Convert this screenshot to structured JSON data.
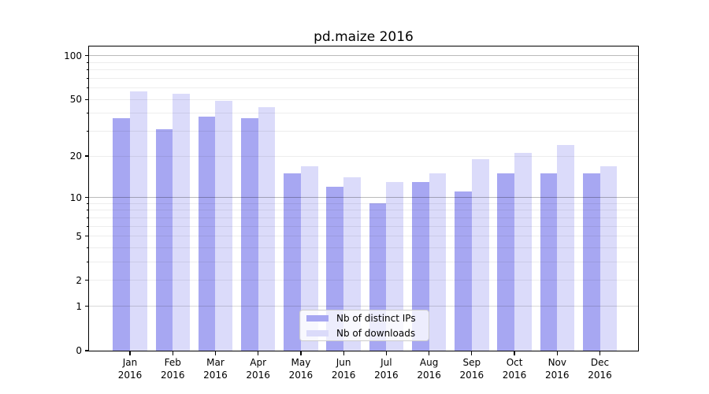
{
  "title": "pd.maize 2016",
  "colors": {
    "distinct_ips": "#a7a7f2",
    "downloads": "#dbdbfa",
    "grid_major": "rgba(0,0,0,0.27)",
    "grid_mid": "rgba(0,0,0,0.15)",
    "grid_minor": "rgba(0,0,0,0.07)"
  },
  "legend": {
    "items": [
      {
        "label": "Nb of distinct IPs",
        "color_key": "distinct_ips"
      },
      {
        "label": "Nb of downloads",
        "color_key": "downloads"
      }
    ]
  },
  "y_axis": {
    "ticks": [
      {
        "label": "100",
        "value": 100
      },
      {
        "label": "50",
        "value": 50
      },
      {
        "label": "20",
        "value": 20
      },
      {
        "label": "10",
        "value": 10
      },
      {
        "label": "5",
        "value": 5
      },
      {
        "label": "2",
        "value": 2
      },
      {
        "label": "1",
        "value": 1
      },
      {
        "label": "0",
        "value": 0
      }
    ],
    "gridlines": {
      "major": [
        100,
        10
      ],
      "mid": [
        1
      ],
      "minor": [
        90,
        80,
        70,
        60,
        50,
        40,
        30,
        20,
        9,
        8,
        7,
        6,
        5,
        4,
        3,
        2
      ]
    }
  },
  "x_axis": {
    "categories": [
      {
        "month": "Jan",
        "year": "2016"
      },
      {
        "month": "Feb",
        "year": "2016"
      },
      {
        "month": "Mar",
        "year": "2016"
      },
      {
        "month": "Apr",
        "year": "2016"
      },
      {
        "month": "May",
        "year": "2016"
      },
      {
        "month": "Jun",
        "year": "2016"
      },
      {
        "month": "Jul",
        "year": "2016"
      },
      {
        "month": "Aug",
        "year": "2016"
      },
      {
        "month": "Sep",
        "year": "2016"
      },
      {
        "month": "Oct",
        "year": "2016"
      },
      {
        "month": "Nov",
        "year": "2016"
      },
      {
        "month": "Dec",
        "year": "2016"
      }
    ]
  },
  "chart_data": {
    "type": "bar",
    "title": "pd.maize 2016",
    "xlabel": "",
    "ylabel": "",
    "y_scale": "log1p",
    "ylim": [
      0,
      116
    ],
    "legend_position": "lower center",
    "grid": true,
    "categories": [
      "Jan 2016",
      "Feb 2016",
      "Mar 2016",
      "Apr 2016",
      "May 2016",
      "Jun 2016",
      "Jul 2016",
      "Aug 2016",
      "Sep 2016",
      "Oct 2016",
      "Nov 2016",
      "Dec 2016"
    ],
    "series": [
      {
        "name": "Nb of distinct IPs",
        "values": [
          37,
          31,
          38,
          37,
          15,
          12,
          9,
          13,
          11,
          15,
          15,
          15
        ]
      },
      {
        "name": "Nb of downloads",
        "values": [
          57,
          55,
          49,
          44,
          17,
          14,
          13,
          15,
          19,
          21,
          24,
          17
        ]
      }
    ]
  }
}
